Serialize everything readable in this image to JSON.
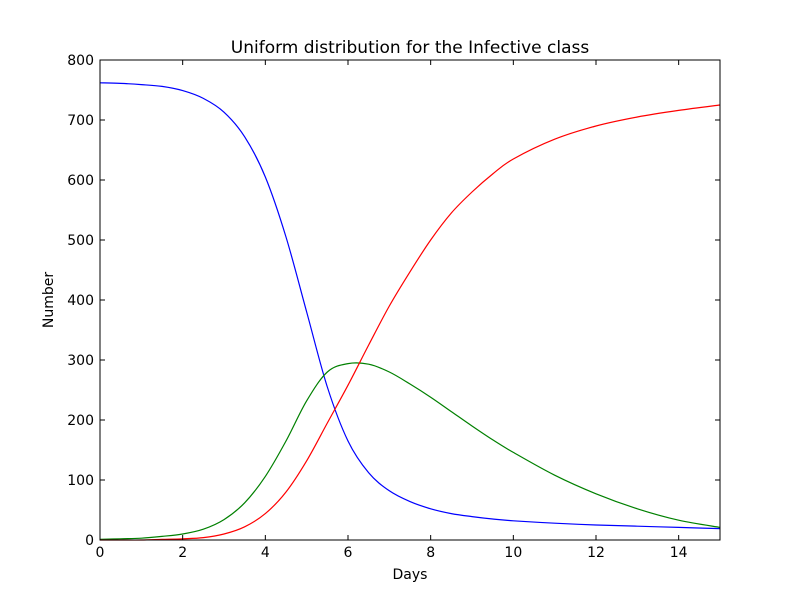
{
  "chart_data": {
    "type": "line",
    "title": "Uniform distribution for the Infective class",
    "xlabel": "Days",
    "ylabel": "Number",
    "xlim": [
      0,
      15
    ],
    "ylim": [
      0,
      800
    ],
    "xticks": [
      0,
      2,
      4,
      6,
      8,
      10,
      12,
      14
    ],
    "yticks": [
      0,
      100,
      200,
      300,
      400,
      500,
      600,
      700,
      800
    ],
    "grid": false,
    "legend": "none",
    "x": [
      0,
      0.5,
      1,
      1.5,
      2,
      2.5,
      3,
      3.5,
      4,
      4.5,
      5,
      5.5,
      6,
      6.5,
      7,
      7.5,
      8,
      8.5,
      9,
      9.5,
      10,
      11,
      12,
      13,
      14,
      15
    ],
    "series": [
      {
        "color": "#0000ff",
        "values": [
          762,
          761,
          759,
          756,
          749,
          736,
          713,
          672,
          605,
          505,
          380,
          255,
          165,
          112,
          82,
          64,
          52,
          44,
          39,
          35,
          32,
          28,
          25,
          23,
          21,
          19
        ]
      },
      {
        "color": "#008000",
        "values": [
          1,
          2,
          3,
          6,
          10,
          18,
          34,
          62,
          106,
          165,
          232,
          280,
          294,
          293,
          280,
          260,
          238,
          214,
          190,
          167,
          146,
          108,
          77,
          52,
          33,
          21
        ]
      },
      {
        "color": "#ff0000",
        "values": [
          0,
          0,
          0,
          1,
          2,
          4,
          10,
          22,
          44,
          80,
          132,
          195,
          258,
          325,
          390,
          447,
          500,
          545,
          580,
          610,
          635,
          668,
          690,
          705,
          716,
          725
        ]
      }
    ]
  }
}
